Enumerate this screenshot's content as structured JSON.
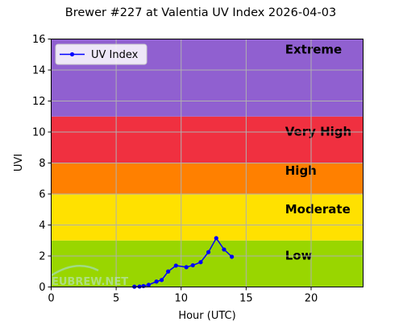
{
  "chart_data": {
    "type": "line",
    "title": "Brewer #227 at Valentia UV Index 2026-04-03",
    "xlabel": "Hour (UTC)",
    "ylabel": "UVI",
    "xlim": [
      0,
      24
    ],
    "ylim": [
      0,
      16
    ],
    "xticks": [
      0,
      5,
      10,
      15,
      20
    ],
    "yticks": [
      0,
      2,
      4,
      6,
      8,
      10,
      12,
      14,
      16
    ],
    "grid": true,
    "legend": {
      "position": "top-left",
      "entries": [
        "UV Index"
      ]
    },
    "bands": [
      {
        "label": "Low",
        "from": 0,
        "to": 3,
        "color": "#99d600"
      },
      {
        "label": "Moderate",
        "from": 3,
        "to": 6,
        "color": "#ffe100"
      },
      {
        "label": "High",
        "from": 6,
        "to": 8,
        "color": "#ff8000"
      },
      {
        "label": "Very High",
        "from": 8,
        "to": 11,
        "color": "#f03040"
      },
      {
        "label": "Extreme",
        "from": 11,
        "to": 16,
        "color": "#9060d0"
      }
    ],
    "series": [
      {
        "name": "UV Index",
        "color": "#0000ff",
        "x": [
          6.4,
          6.8,
          7.1,
          7.5,
          8.1,
          8.5,
          9.0,
          9.6,
          10.4,
          10.9,
          11.5,
          12.1,
          12.7,
          13.3,
          13.9
        ],
        "y": [
          0.02,
          0.03,
          0.06,
          0.14,
          0.35,
          0.45,
          1.0,
          1.38,
          1.28,
          1.4,
          1.6,
          2.25,
          3.15,
          2.42,
          1.95
        ]
      }
    ]
  },
  "watermark": "EUBREW.NET"
}
